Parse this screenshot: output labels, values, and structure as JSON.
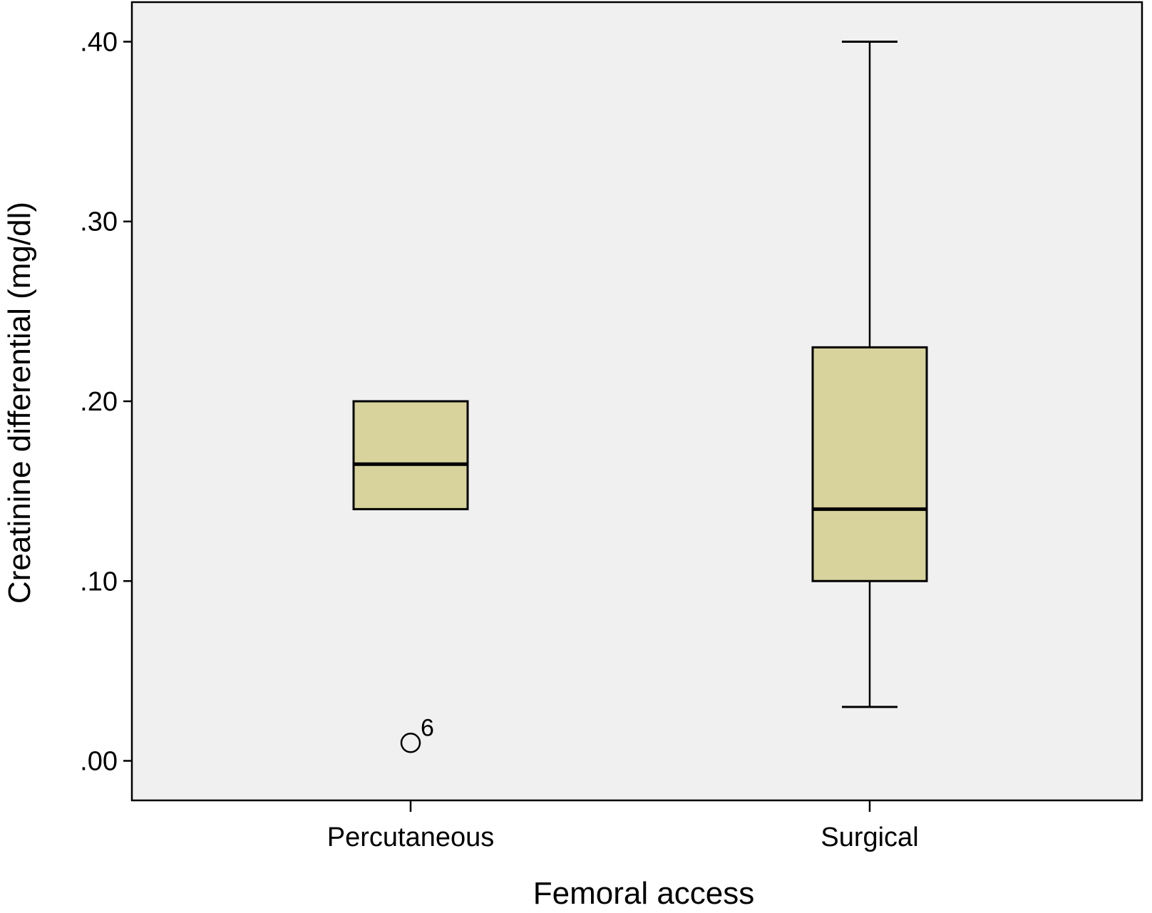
{
  "chart_data": {
    "type": "box",
    "xlabel": "Femoral access",
    "ylabel": "Creatinine differential (mg/dl)",
    "ylim": [
      -0.022,
      0.422
    ],
    "yticks": [
      0.0,
      0.1,
      0.2,
      0.3,
      0.4
    ],
    "ytick_labels": [
      ".00",
      ".10",
      ".20",
      ".30",
      ".40"
    ],
    "grid": false,
    "colors": {
      "plot_bg": "#f0f0f0",
      "box_fill": "#d8d39c",
      "stroke": "#000000"
    },
    "categories": [
      "Percutaneous",
      "Surgical"
    ],
    "boxes": [
      {
        "category": "Percutaneous",
        "whisker_low": 0.14,
        "q1": 0.14,
        "median": 0.165,
        "q3": 0.2,
        "whisker_high": 0.2,
        "outliers": [
          {
            "value": 0.01,
            "label": "6"
          }
        ]
      },
      {
        "category": "Surgical",
        "whisker_low": 0.03,
        "q1": 0.1,
        "median": 0.14,
        "q3": 0.23,
        "whisker_high": 0.4,
        "outliers": []
      }
    ]
  }
}
